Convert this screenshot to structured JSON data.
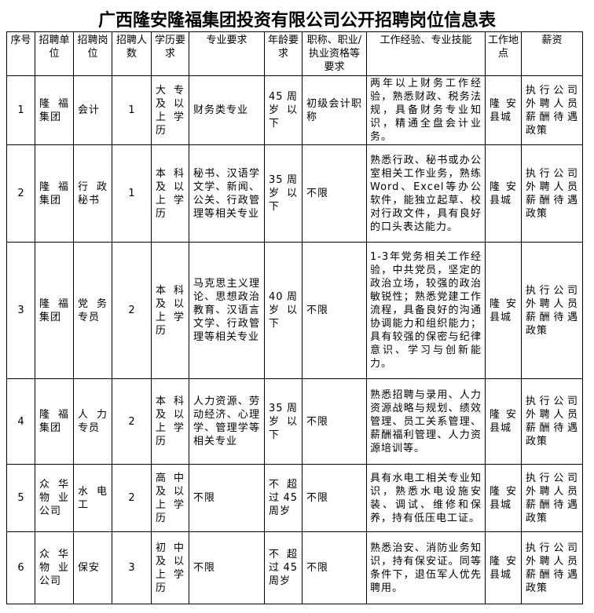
{
  "title": "广西隆安隆福集团投资有限公司公开招聘岗位信息表",
  "headers": [
    "序号",
    "招聘单位",
    "招聘岗位",
    "招聘人数",
    "学历要求",
    "专业要求",
    "年龄要求",
    "职称、职业/执业资格等要求",
    "工作经验、专业技能",
    "工作地点",
    "薪资"
  ],
  "rows": [
    [
      "1",
      "隆福集团",
      "会计",
      "1",
      "大专及以上学历",
      "财务类专业",
      "45周岁以下",
      "初级会计职称",
      "两年以上财务工作经验，熟悉财政、税务法规，具备财务专业知识，精通全盘会计业务。",
      "隆安县城",
      "执行公司外聘人员薪酬待遇政策"
    ],
    [
      "2",
      "隆福集团",
      "行政秘书",
      "1",
      "本科及以上学历",
      "秘书、汉语学文学、新闻、公关、行政管理等相关专业",
      "35周岁以下",
      "不限",
      "熟悉行政、秘书或办公室相关工作业务，熟练Word、Excel等办公软件，能独立起草、校对行政文件，具有良好的口头表达能力。",
      "隆安县城",
      "执行公司外聘人员薪酬待遇政策"
    ],
    [
      "3",
      "隆福集团",
      "党务专员",
      "2",
      "本科及以上学历",
      "马克思主义理论、思想政治教育、汉语言文学、行政管理等相关专业",
      "40周岁以下",
      "不限",
      "1-3年党务相关工作经验，中共党员，坚定的政治立场，较强的政治敏锐性；熟悉党建工作流程，具备良好的沟通协调能力和组织能力；具有较强的保密与纪律意识、学习与创新能力。",
      "隆安县城",
      "执行公司外聘人员薪酬待遇政策"
    ],
    [
      "4",
      "隆福集团",
      "人力专员",
      "2",
      "本科及以上学历",
      "人力资源、劳动经济、心理学、管理学等相关专业",
      "35周岁以下",
      "不限",
      "熟悉招聘与录用、人力资源战略与规划、绩效管理、员工关系管理、薪酬福利管理、人力资源培训等。",
      "隆安县城",
      "执行公司外聘人员薪酬待遇政策"
    ],
    [
      "5",
      "众华物业公司",
      "水电工",
      "2",
      "高中及以上学历",
      "不限",
      "不超过45周岁",
      "不限",
      "具有水电工相关专业知识，熟悉水电设施安装、调试、维修和保养，持有低压电工证。",
      "隆安县城",
      "执行公司外聘人员薪酬待遇政策"
    ],
    [
      "6",
      "众华物业公司",
      "保安",
      "3",
      "初中及以上学历",
      "不限",
      "不超过45周岁",
      "不限",
      "熟悉治安、消防业务知识，持有保安证。同等条件下，退伍军人优先聘用。",
      "隆安县城",
      "执行公司外聘人员薪酬待遇政策"
    ]
  ]
}
